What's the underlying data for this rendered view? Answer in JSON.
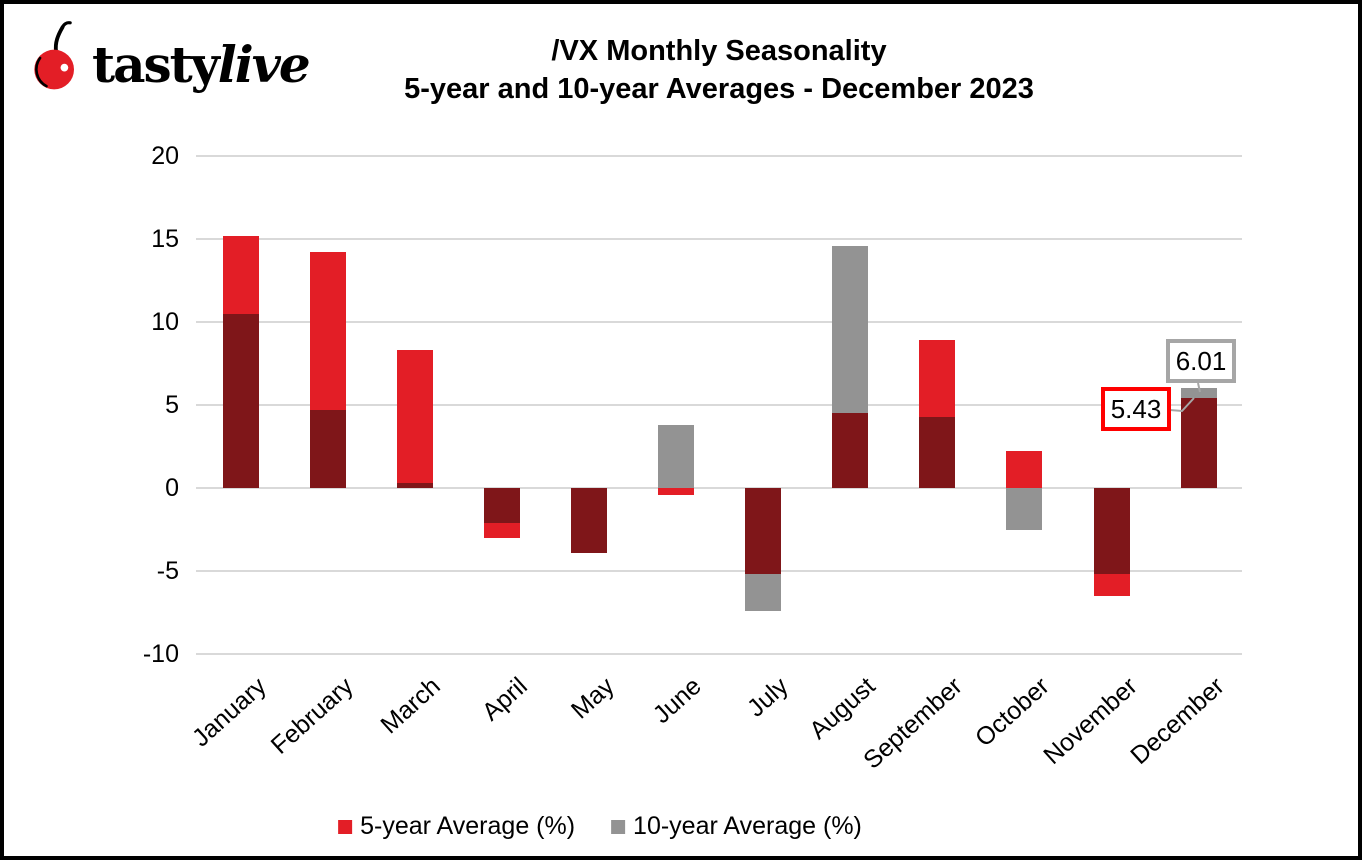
{
  "header": {
    "brand_first": "tasty",
    "brand_second": "live",
    "title_line1": "/VX Monthly Seasonality",
    "title_line2": "5-year and 10-year Averages - December 2023"
  },
  "chart_data": {
    "type": "bar",
    "subtype": "overlapped-columns",
    "title": "/VX Monthly Seasonality",
    "subtitle": "5-year and 10-year Averages - December 2023",
    "categories": [
      "January",
      "February",
      "March",
      "April",
      "May",
      "June",
      "July",
      "August",
      "September",
      "October",
      "November",
      "December"
    ],
    "series": [
      {
        "name": "5-year Average (%)",
        "color": "#E31E26",
        "values": [
          15.2,
          14.2,
          8.3,
          -3.0,
          -3.9,
          -0.4,
          -5.2,
          4.5,
          8.9,
          2.2,
          -6.5,
          5.43
        ]
      },
      {
        "name": "10-year Average (%)",
        "color": "#939393",
        "values": [
          10.5,
          4.7,
          0.3,
          -2.1,
          -3.9,
          3.8,
          -7.4,
          14.6,
          4.3,
          -2.5,
          -5.2,
          6.01
        ]
      }
    ],
    "overlap_color": "#7F1619",
    "gridline_color": "#D9D9D9",
    "y_ticks": [
      20,
      15,
      10,
      5,
      0,
      -5,
      -10
    ],
    "ylim": [
      -10,
      20
    ],
    "grid": true,
    "legend_position": "bottom",
    "annotations": [
      {
        "text": "5.43",
        "month": "December",
        "series": "5-year Average (%)",
        "border_color": "#FF0000"
      },
      {
        "text": "6.01",
        "month": "December",
        "series": "10-year Average (%)",
        "border_color": "#A6A6A6"
      }
    ]
  }
}
